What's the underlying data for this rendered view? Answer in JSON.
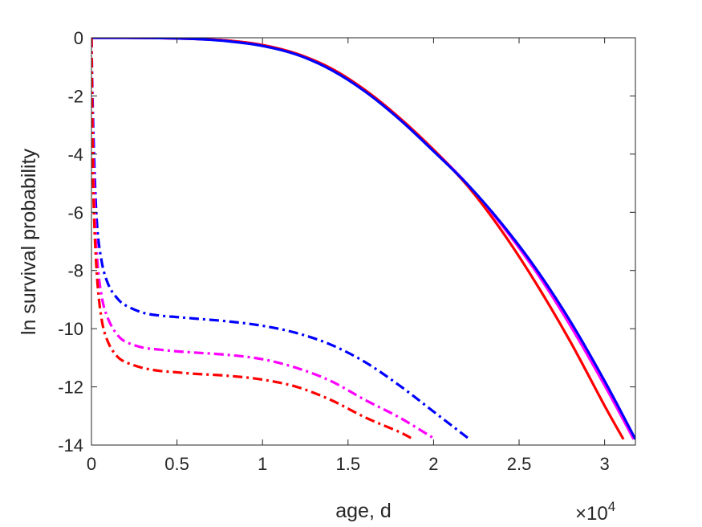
{
  "chart_data": {
    "type": "line",
    "title": "",
    "xlabel": "age, d",
    "ylabel": "ln survival probability",
    "x_exponent": {
      "base": "×10",
      "power": "4"
    },
    "xlim": [
      0,
      31800
    ],
    "ylim": [
      -14,
      0
    ],
    "xticks": [
      0,
      5000,
      10000,
      15000,
      20000,
      25000,
      30000
    ],
    "xtick_labels": [
      "0",
      "0.5",
      "1",
      "1.5",
      "2",
      "2.5",
      "3"
    ],
    "yticks": [
      0,
      -2,
      -4,
      -6,
      -8,
      -10,
      -12,
      -14
    ],
    "ytick_labels": [
      "0",
      "-2",
      "-4",
      "-6",
      "-8",
      "-10",
      "-12",
      "-14"
    ],
    "grid": false,
    "legend": "none",
    "series": [
      {
        "color": "#ff00ff",
        "style": "solid",
        "x": [
          0,
          2000,
          4000,
          6000,
          8000,
          10000,
          12000,
          14000,
          16000,
          18000,
          20000,
          22000,
          24000,
          26000,
          28000,
          30000,
          31700
        ],
        "y": [
          0,
          0,
          -0.01,
          -0.04,
          -0.1,
          -0.25,
          -0.55,
          -1.05,
          -1.8,
          -2.75,
          -3.85,
          -5.05,
          -6.45,
          -8.05,
          -9.9,
          -11.95,
          -13.8
        ]
      },
      {
        "color": "#ff0000",
        "style": "solid",
        "x": [
          0,
          2000,
          4000,
          6000,
          8000,
          10000,
          12000,
          14000,
          16000,
          18000,
          20000,
          22000,
          24000,
          26000,
          28000,
          30000,
          31100
        ],
        "y": [
          0,
          0,
          -0.01,
          -0.04,
          -0.1,
          -0.25,
          -0.55,
          -1.05,
          -1.8,
          -2.75,
          -3.85,
          -5.1,
          -6.65,
          -8.45,
          -10.45,
          -12.65,
          -13.8
        ]
      },
      {
        "color": "#0000ff",
        "style": "solid",
        "x": [
          0,
          2000,
          4000,
          6000,
          8000,
          10000,
          12000,
          14000,
          16000,
          18000,
          20000,
          22000,
          24000,
          26000,
          28000,
          30000,
          31800
        ],
        "y": [
          0,
          0,
          -0.01,
          -0.04,
          -0.12,
          -0.28,
          -0.58,
          -1.1,
          -1.85,
          -2.8,
          -3.9,
          -5.05,
          -6.4,
          -7.95,
          -9.75,
          -11.8,
          -13.8
        ]
      },
      {
        "color": "#0000ff",
        "style": "dashdot",
        "x": [
          0,
          100,
          300,
          600,
          1000,
          1500,
          2000,
          3000,
          4000,
          5000,
          6000,
          8000,
          10000,
          12000,
          14000,
          16000,
          18000,
          20000,
          22100
        ],
        "y": [
          0,
          -3,
          -6.2,
          -7.7,
          -8.5,
          -8.95,
          -9.2,
          -9.45,
          -9.55,
          -9.6,
          -9.65,
          -9.75,
          -9.9,
          -10.15,
          -10.55,
          -11.15,
          -11.95,
          -12.85,
          -13.8
        ]
      },
      {
        "color": "#ff00ff",
        "style": "dashdot",
        "x": [
          0,
          100,
          300,
          600,
          1000,
          1500,
          2000,
          3000,
          4000,
          5000,
          6000,
          8000,
          10000,
          12000,
          14000,
          16000,
          18000,
          20100
        ],
        "y": [
          0,
          -4,
          -7.3,
          -8.9,
          -9.7,
          -10.2,
          -10.45,
          -10.65,
          -10.72,
          -10.78,
          -10.82,
          -10.9,
          -11.05,
          -11.35,
          -11.8,
          -12.45,
          -13.05,
          -13.8
        ]
      },
      {
        "color": "#ff0000",
        "style": "dashdot",
        "x": [
          0,
          100,
          300,
          600,
          1000,
          1500,
          2000,
          3000,
          4000,
          5000,
          6000,
          8000,
          10000,
          12000,
          14000,
          16000,
          18000,
          18800
        ],
        "y": [
          0,
          -5,
          -8,
          -9.7,
          -10.5,
          -10.95,
          -11.15,
          -11.35,
          -11.45,
          -11.5,
          -11.55,
          -11.62,
          -11.75,
          -12.0,
          -12.45,
          -13.05,
          -13.55,
          -13.8
        ]
      }
    ]
  }
}
